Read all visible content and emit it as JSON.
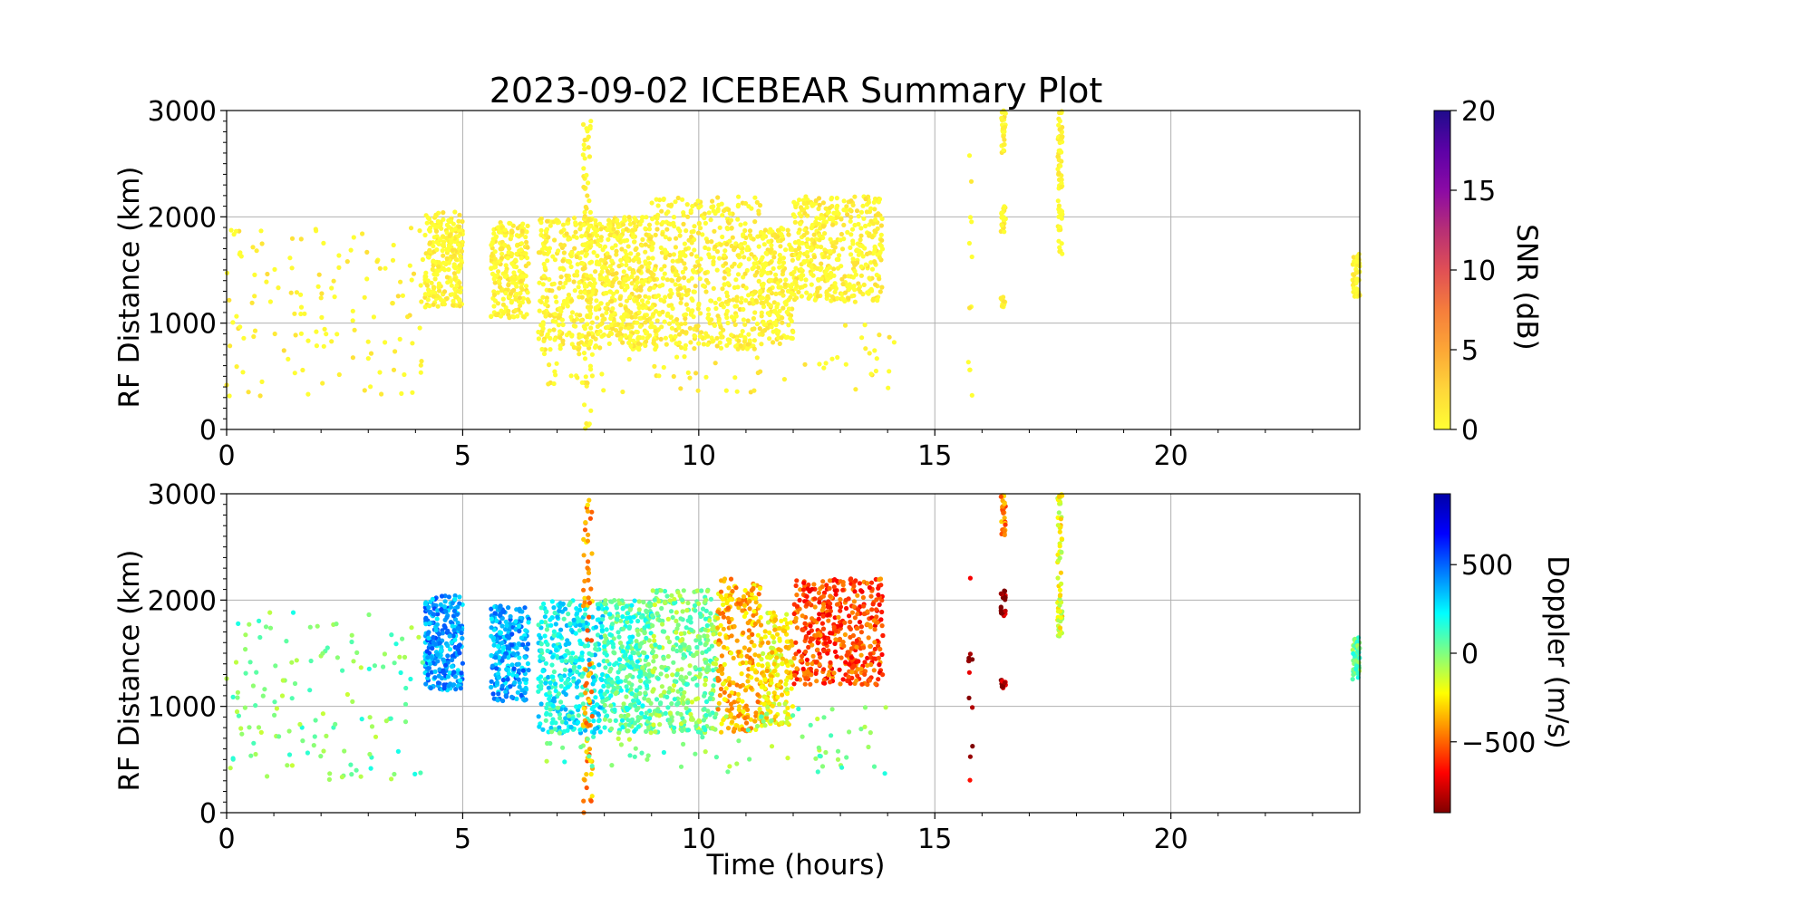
{
  "title": "2023-09-02 ICEBEAR Summary Plot",
  "colormaps": {
    "snr": [
      "#ffff33",
      "#fed63a",
      "#fca636",
      "#f57d3c",
      "#e04f55",
      "#b72f75",
      "#8b0aa5",
      "#5c01a6",
      "#1f0c8c"
    ],
    "doppler": [
      "#0000a8",
      "#0000ff",
      "#0080ff",
      "#00ffff",
      "#80ff80",
      "#ffff00",
      "#ff8000",
      "#ff0000",
      "#800000"
    ]
  },
  "chart_data": [
    {
      "type": "scatter",
      "name": "snr-panel",
      "xlabel": "",
      "ylabel": "RF Distance (km)",
      "xlim": [
        0,
        24
      ],
      "ylim": [
        0,
        3000
      ],
      "xticks": [
        "0",
        "5",
        "10",
        "15",
        "20"
      ],
      "yticks": [
        "0",
        "1000",
        "2000",
        "3000"
      ],
      "grid": true,
      "colorbar": {
        "label": "SNR (dB)",
        "range": [
          0,
          20
        ],
        "ticks": [
          "0",
          "5",
          "10",
          "15",
          "20"
        ]
      },
      "clusters": [
        {
          "t": [
            4.2,
            5.0
          ],
          "r": [
            1150,
            2050
          ],
          "c": 0.15,
          "n": 260
        },
        {
          "t": [
            5.6,
            6.4
          ],
          "r": [
            1050,
            1950
          ],
          "c": 0.3,
          "n": 240
        },
        {
          "t": [
            6.6,
            8.0
          ],
          "r": [
            750,
            2000
          ],
          "c": 0.25,
          "n": 360
        },
        {
          "t": [
            8.0,
            9.0
          ],
          "r": [
            750,
            2000
          ],
          "c": 0.35,
          "n": 360
        },
        {
          "t": [
            9.0,
            11.3
          ],
          "r": [
            750,
            2200
          ],
          "c": 0.25,
          "n": 520
        },
        {
          "t": [
            11.3,
            12.0
          ],
          "r": [
            800,
            1900
          ],
          "c": 0.15,
          "n": 200
        },
        {
          "t": [
            12.0,
            13.9
          ],
          "r": [
            1200,
            2200
          ],
          "c": 0.3,
          "n": 440
        },
        {
          "t": [
            7.55,
            7.75
          ],
          "r": [
            0,
            3000
          ],
          "c": 0.1,
          "n": 80
        },
        {
          "t": [
            16.4,
            16.5
          ],
          "r": [
            2600,
            3000
          ],
          "c": 0.05,
          "n": 30
        },
        {
          "t": [
            16.4,
            16.5
          ],
          "r": [
            1850,
            2100
          ],
          "c": 0.05,
          "n": 20
        },
        {
          "t": [
            16.4,
            16.5
          ],
          "r": [
            1150,
            1250
          ],
          "c": 0.05,
          "n": 12
        },
        {
          "t": [
            17.6,
            17.7
          ],
          "r": [
            1650,
            3000
          ],
          "c": 0.05,
          "n": 70
        },
        {
          "t": [
            23.85,
            24.0
          ],
          "r": [
            1250,
            1650
          ],
          "c": 0.1,
          "n": 60
        },
        {
          "t": [
            0.0,
            4.2
          ],
          "r": [
            300,
            1900
          ],
          "c": 0.3,
          "n": 130
        },
        {
          "t": [
            6.6,
            14.2
          ],
          "r": [
            350,
            1000
          ],
          "c": 0.3,
          "n": 90
        },
        {
          "t": [
            15.7,
            15.8
          ],
          "r": [
            100,
            2600
          ],
          "c": 0.05,
          "n": 12
        }
      ]
    },
    {
      "type": "scatter",
      "name": "doppler-panel",
      "xlabel": "Time (hours)",
      "ylabel": "RF Distance (km)",
      "xlim": [
        0,
        24
      ],
      "ylim": [
        0,
        3000
      ],
      "xticks": [
        "0",
        "5",
        "10",
        "15",
        "20"
      ],
      "yticks": [
        "0",
        "1000",
        "2000",
        "3000"
      ],
      "grid": true,
      "colorbar": {
        "label": "Doppler (m/s)",
        "range": [
          -900,
          900
        ],
        "ticks": [
          "500",
          "0",
          "−500"
        ],
        "tick_values": [
          500,
          0,
          -500
        ]
      },
      "clusters": [
        {
          "t": [
            4.2,
            5.0
          ],
          "r": [
            1150,
            2050
          ],
          "c": 400,
          "n": 260
        },
        {
          "t": [
            5.6,
            6.4
          ],
          "r": [
            1050,
            1950
          ],
          "c": 380,
          "n": 240
        },
        {
          "t": [
            6.6,
            8.0
          ],
          "r": [
            750,
            2000
          ],
          "c": 220,
          "n": 360
        },
        {
          "t": [
            8.0,
            9.0
          ],
          "r": [
            750,
            2000
          ],
          "c": 100,
          "n": 360
        },
        {
          "t": [
            9.0,
            10.4
          ],
          "r": [
            750,
            2100
          ],
          "c": 0,
          "n": 360
        },
        {
          "t": [
            10.4,
            11.3
          ],
          "r": [
            750,
            2200
          ],
          "c": -350,
          "n": 260
        },
        {
          "t": [
            11.3,
            12.0
          ],
          "r": [
            800,
            1900
          ],
          "c": -250,
          "n": 200
        },
        {
          "t": [
            12.0,
            13.9
          ],
          "r": [
            1200,
            2200
          ],
          "c": -550,
          "n": 440
        },
        {
          "t": [
            7.55,
            7.75
          ],
          "r": [
            0,
            3000
          ],
          "c": -400,
          "n": 80
        },
        {
          "t": [
            16.4,
            16.5
          ],
          "r": [
            2600,
            3000
          ],
          "c": -450,
          "n": 30
        },
        {
          "t": [
            16.4,
            16.5
          ],
          "r": [
            1850,
            2100
          ],
          "c": -850,
          "n": 20
        },
        {
          "t": [
            16.4,
            16.5
          ],
          "r": [
            1150,
            1250
          ],
          "c": -850,
          "n": 12
        },
        {
          "t": [
            17.6,
            17.7
          ],
          "r": [
            1650,
            3000
          ],
          "c": -200,
          "n": 70
        },
        {
          "t": [
            23.85,
            24.0
          ],
          "r": [
            1250,
            1650
          ],
          "c": 60,
          "n": 60
        },
        {
          "t": [
            0.0,
            4.2
          ],
          "r": [
            300,
            1900
          ],
          "c": 30,
          "n": 130
        },
        {
          "t": [
            6.6,
            14.2
          ],
          "r": [
            350,
            1000
          ],
          "c": 20,
          "n": 90
        },
        {
          "t": [
            15.7,
            15.8
          ],
          "r": [
            100,
            2600
          ],
          "c": -800,
          "n": 12
        }
      ]
    }
  ]
}
